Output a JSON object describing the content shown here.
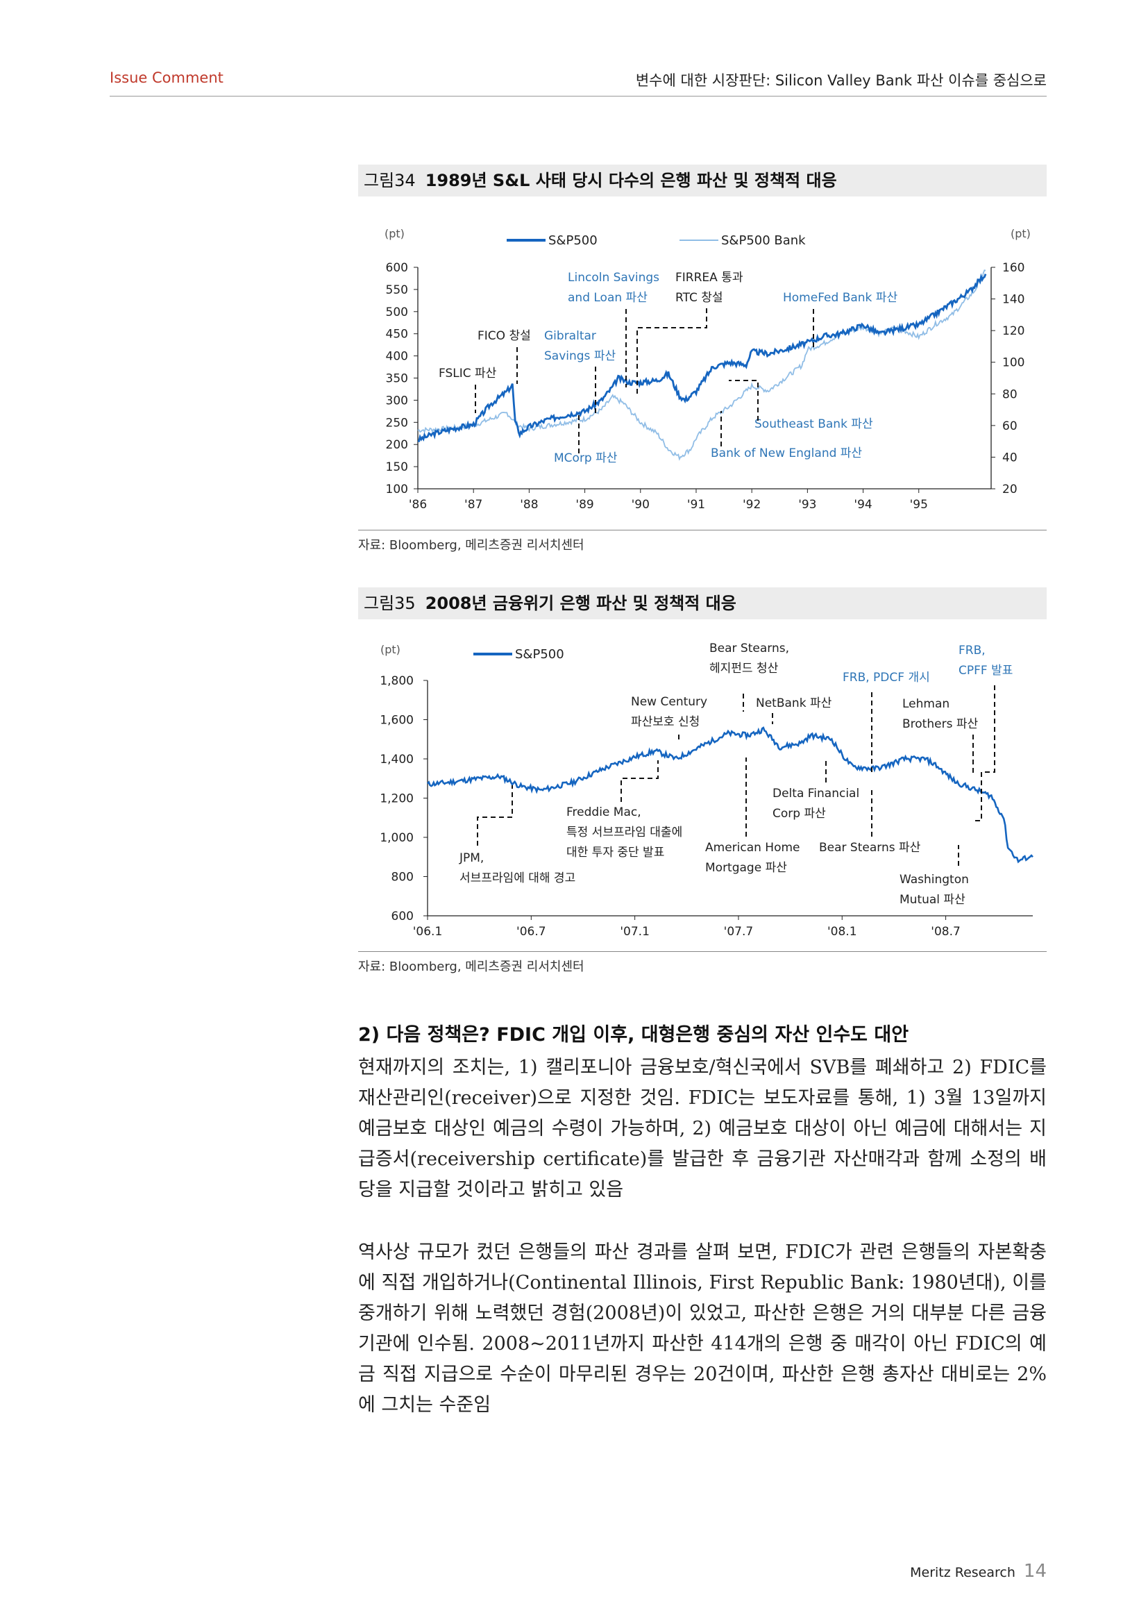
{
  "header": {
    "left": "Issue Comment",
    "right": "변수에 대한 시장판단: Silicon Valley Bank 파산 이슈를 중심으로"
  },
  "figure34": {
    "number": "그림34",
    "title": "1989년 S&L 사태 당시 다수의 은행 파산 및 정책적 대응",
    "source": "자료: Bloomberg, 메리츠증권 리서치센터"
  },
  "figure35": {
    "number": "그림35",
    "title": "2008년 금융위기 은행 파산 및 정책적 대응",
    "source": "자료: Bloomberg, 메리츠증권 리서치센터"
  },
  "chart_data": [
    {
      "type": "line",
      "y_left_unit": "(pt)",
      "y_right_unit": "(pt)",
      "x_ticks": [
        "'86",
        "'87",
        "'88",
        "'89",
        "'90",
        "'91",
        "'92",
        "'93",
        "'94",
        "'95"
      ],
      "y_left_ticks": [
        100,
        150,
        200,
        250,
        300,
        350,
        400,
        450,
        500,
        550,
        600
      ],
      "y_right_ticks": [
        20,
        40,
        60,
        80,
        100,
        120,
        140,
        160
      ],
      "ylim_left": [
        100,
        600
      ],
      "ylim_right": [
        20,
        160
      ],
      "xlim": [
        1986,
        1996.3
      ],
      "colors": {
        "SP500": "#1565c0",
        "SP500Bank": "#90bde6",
        "annotation": "#2e75b6"
      },
      "series": [
        {
          "name": "S&P500",
          "axis": "left",
          "x": [
            1986.0,
            1986.3,
            1986.6,
            1987.0,
            1987.3,
            1987.6,
            1987.7,
            1987.75,
            1987.83,
            1988.0,
            1988.3,
            1988.6,
            1989.0,
            1989.3,
            1989.5,
            1989.6,
            1989.8,
            1990.0,
            1990.3,
            1990.5,
            1990.7,
            1990.8,
            1991.0,
            1991.3,
            1991.6,
            1991.9,
            1992.0,
            1992.3,
            1992.6,
            1993.0,
            1993.3,
            1993.6,
            1994.0,
            1994.3,
            1994.6,
            1995.0,
            1995.3,
            1995.6,
            1995.9,
            1996.2
          ],
          "y": [
            210,
            225,
            235,
            245,
            290,
            320,
            335,
            250,
            225,
            240,
            255,
            265,
            275,
            300,
            330,
            350,
            340,
            340,
            345,
            360,
            310,
            300,
            320,
            375,
            385,
            380,
            410,
            405,
            415,
            430,
            445,
            450,
            470,
            450,
            460,
            470,
            495,
            520,
            545,
            585
          ]
        },
        {
          "name": "S&P500 Bank",
          "axis": "right",
          "x": [
            1986.0,
            1986.5,
            1987.0,
            1987.3,
            1987.6,
            1987.8,
            1988.0,
            1988.5,
            1989.0,
            1989.3,
            1989.5,
            1989.7,
            1990.0,
            1990.3,
            1990.5,
            1990.7,
            1990.9,
            1991.0,
            1991.3,
            1991.6,
            1992.0,
            1992.3,
            1992.6,
            1992.9,
            1993.0,
            1993.3,
            1993.6,
            1994.0,
            1994.3,
            1994.6,
            1995.0,
            1995.3,
            1995.6,
            1996.0,
            1996.2
          ],
          "y": [
            57,
            58,
            60,
            64,
            68,
            60,
            58,
            61,
            64,
            70,
            78,
            74,
            62,
            55,
            45,
            40,
            45,
            52,
            65,
            72,
            85,
            82,
            90,
            98,
            108,
            112,
            118,
            122,
            118,
            122,
            116,
            124,
            130,
            145,
            158
          ]
        }
      ],
      "annotations": [
        {
          "text": "FSLIC 파산"
        },
        {
          "text": "FICO 창설"
        },
        {
          "text": "Gibraltar"
        },
        {
          "text": "Savings 파산"
        },
        {
          "text": "Lincoln Savings"
        },
        {
          "text": "and Loan 파산"
        },
        {
          "text": "FIRREA 통과"
        },
        {
          "text": "RTC 창설"
        },
        {
          "text": "MCorp 파산"
        },
        {
          "text": "HomeFed Bank 파산"
        },
        {
          "text": "Southeast  Bank 파산"
        },
        {
          "text": "Bank of New England  파산"
        }
      ]
    },
    {
      "type": "line",
      "y_unit": "(pt)",
      "x_ticks": [
        "'06.1",
        "'06.7",
        "'07.1",
        "'07.7",
        "'08.1",
        "'08.7"
      ],
      "y_ticks": [
        "600",
        "800",
        "1,000",
        "1,200",
        "1,400",
        "1,600",
        "1,800"
      ],
      "y_tick_values": [
        600,
        800,
        1000,
        1200,
        1400,
        1600,
        1800
      ],
      "ylim": [
        600,
        1800
      ],
      "xlim": [
        2006.0,
        2008.92
      ],
      "colors": {
        "SP500": "#1565c0",
        "annotation": "#2e75b6"
      },
      "series": [
        {
          "name": "S&P500",
          "x": [
            2006.0,
            2006.1,
            2006.25,
            2006.35,
            2006.45,
            2006.55,
            2006.7,
            2006.85,
            2007.0,
            2007.1,
            2007.15,
            2007.2,
            2007.35,
            2007.45,
            2007.55,
            2007.62,
            2007.7,
            2007.8,
            2007.85,
            2007.95,
            2008.0,
            2008.05,
            2008.15,
            2008.2,
            2008.3,
            2008.4,
            2008.45,
            2008.55,
            2008.6,
            2008.65,
            2008.72,
            2008.75,
            2008.78,
            2008.8,
            2008.85,
            2008.9,
            2008.92
          ],
          "y": [
            1270,
            1280,
            1300,
            1310,
            1260,
            1240,
            1280,
            1350,
            1410,
            1440,
            1420,
            1400,
            1480,
            1530,
            1520,
            1550,
            1460,
            1480,
            1520,
            1500,
            1420,
            1360,
            1350,
            1360,
            1400,
            1400,
            1370,
            1280,
            1260,
            1240,
            1210,
            1150,
            1100,
            950,
            880,
            900,
            900
          ]
        }
      ],
      "annotations": [
        {
          "text": "JPM,"
        },
        {
          "text": "서브프라임에 대해 경고"
        },
        {
          "text": "Freddie Mac,"
        },
        {
          "text": "특정 서브프라임 대출에"
        },
        {
          "text": "대한 투자 중단 발표"
        },
        {
          "text": "New Century"
        },
        {
          "text": "파산보호 신청"
        },
        {
          "text": "Bear Stearns,"
        },
        {
          "text": "헤지펀드 청산"
        },
        {
          "text": "NetBank 파산"
        },
        {
          "text": "American Home"
        },
        {
          "text": "Mortgage 파산"
        },
        {
          "text": "Delta Financial"
        },
        {
          "text": "Corp 파산"
        },
        {
          "text": "FRB, PDCF 개시"
        },
        {
          "text": "Bear Stearns 파산"
        },
        {
          "text": "Lehman"
        },
        {
          "text": "Brothers 파산"
        },
        {
          "text": "FRB,"
        },
        {
          "text": "CPFF 발표"
        },
        {
          "text": "Washington"
        },
        {
          "text": "Mutual  파산"
        }
      ]
    }
  ],
  "section_heading": "2) 다음 정책은? FDIC 개입 이후, 대형은행 중심의 자산 인수도 대안",
  "paragraphs": [
    "현재까지의 조치는, 1) 캘리포니아 금융보호/혁신국에서 SVB를 폐쇄하고 2) FDIC를 재산관리인(receiver)으로 지정한 것임. FDIC는 보도자료를 통해, 1) 3월 13일까지 예금보호 대상인 예금의 수령이 가능하며, 2) 예금보호 대상이 아닌 예금에 대해서는 지급증서(receivership certificate)를 발급한 후 금융기관 자산매각과 함께 소정의 배당을 지급할 것이라고 밝히고 있음",
    "역사상 규모가 컸던 은행들의 파산 경과를 살펴 보면, FDIC가 관련 은행들의 자본확충에 직접 개입하거나(Continental Illinois, First Republic Bank: 1980년대), 이를 중개하기 위해 노력했던 경험(2008년)이 있었고, 파산한 은행은 거의 대부분 다른 금융기관에 인수됨. 2008~2011년까지 파산한 414개의 은행 중 매각이 아닌 FDIC의 예금 직접 지급으로 수순이 마무리된 경우는 20건이며, 파산한 은행 총자산 대비로는 2%에 그치는 수준임"
  ],
  "footer": {
    "brand": "Meritz Research",
    "page": "14"
  }
}
